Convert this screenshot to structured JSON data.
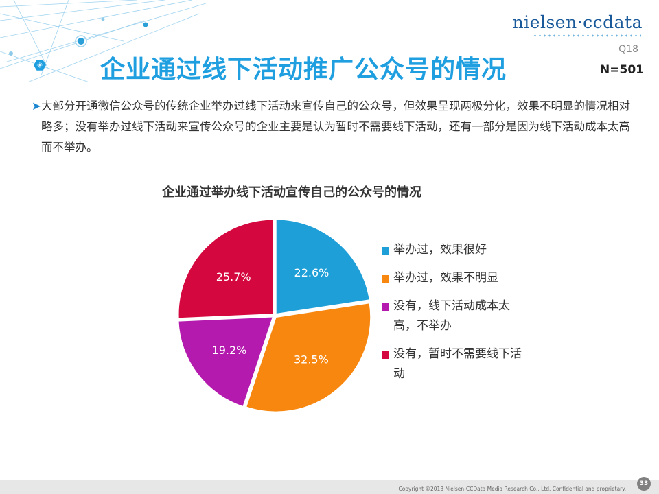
{
  "header": {
    "title": "企业通过线下活动推广公众号的情况",
    "logo_text": "nielsen·ccdata",
    "question_code": "Q18",
    "sample_size": "N=501"
  },
  "summary": {
    "bullet": "➤",
    "text": "大部分开通微信公众号的传统企业举办过线下活动来宣传自己的公众号，但效果呈现两极分化，效果不明显的情况相对略多；没有举办过线下活动来宣传公众号的企业主要是认为暂时不需要线下活动，还有一部分是因为线下活动成本太高而不举办。"
  },
  "chart_data": {
    "type": "pie",
    "title": "企业通过举办线下活动宣传自己的公众号的情况",
    "unit": "%",
    "legend_position": "right",
    "start_angle_deg": 0,
    "direction": "clockwise",
    "slices": [
      {
        "label": "举办过，效果很好",
        "value": 22.6,
        "display": "22.6%",
        "color": "#1f9fd8"
      },
      {
        "label": "举办过，效果不明显",
        "value": 32.5,
        "display": "32.5%",
        "color": "#f7870f"
      },
      {
        "label": "没有，线下活动成本太高，不举办",
        "value": 19.2,
        "display": "19.2%",
        "color": "#b41aae"
      },
      {
        "label": "没有，暂时不需要线下活动",
        "value": 25.7,
        "display": "25.7%",
        "color": "#d4083f"
      }
    ]
  },
  "footer": {
    "copyright": "Copyright ©2013  Nielsen-CCData Media Research Co., Ltd. Confidential and proprietary.",
    "page_number": "33"
  }
}
